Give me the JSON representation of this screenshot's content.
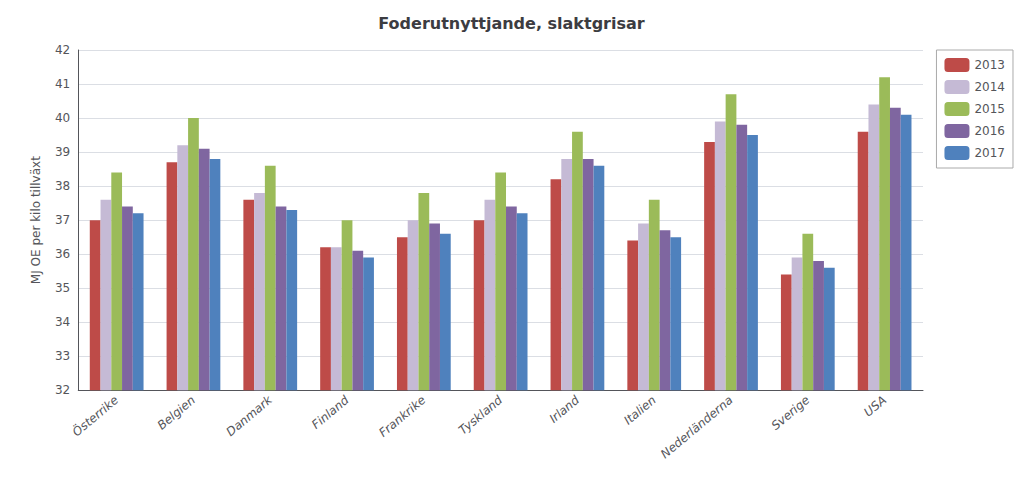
{
  "chart_data": {
    "type": "bar",
    "title": "Foderutnyttjande, slaktgrisar",
    "ylabel": "MJ OE per kilo tillväxt",
    "categories": [
      "Österrike",
      "Belgien",
      "Danmark",
      "Finland",
      "Frankrike",
      "Tyskland",
      "Irland",
      "Italien",
      "Nederländerna",
      "Sverige",
      "USA"
    ],
    "series": [
      {
        "name": "2013",
        "color": "#BE4B48",
        "values": [
          37.0,
          38.7,
          37.6,
          36.2,
          36.5,
          37.0,
          38.2,
          36.4,
          39.3,
          35.4,
          39.6
        ]
      },
      {
        "name": "2014",
        "color": "#C5BAD5",
        "values": [
          37.6,
          39.2,
          37.8,
          36.2,
          37.0,
          37.6,
          38.8,
          36.9,
          39.9,
          35.9,
          40.4
        ]
      },
      {
        "name": "2015",
        "color": "#9BBB59",
        "values": [
          38.4,
          40.0,
          38.6,
          37.0,
          37.8,
          38.4,
          39.6,
          37.6,
          40.7,
          36.6,
          41.2
        ]
      },
      {
        "name": "2016",
        "color": "#7F66A0",
        "values": [
          37.4,
          39.1,
          37.4,
          36.1,
          36.9,
          37.4,
          38.8,
          36.7,
          39.8,
          35.8,
          40.3
        ]
      },
      {
        "name": "2017",
        "color": "#4F81BD",
        "values": [
          37.2,
          38.8,
          37.3,
          35.9,
          36.6,
          37.2,
          38.6,
          36.5,
          39.5,
          35.6,
          40.1
        ]
      }
    ],
    "ylim": [
      32,
      42
    ],
    "yticks": [
      32,
      33,
      34,
      35,
      36,
      37,
      38,
      39,
      40,
      41,
      42
    ],
    "grid": true,
    "legend": "upper right"
  }
}
